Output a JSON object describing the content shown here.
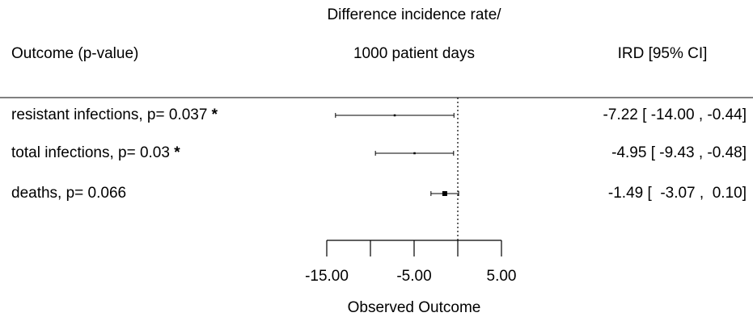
{
  "header": {
    "col_outcome": "Outcome (p-value)",
    "col_measure_line1": "Difference incidence rate/",
    "col_measure_line2": "1000 patient days",
    "col_ci": "IRD [95% CI]"
  },
  "chart_data": {
    "type": "forest",
    "xlabel": "Observed Outcome",
    "xlim": [
      -15,
      5
    ],
    "x_ticks": [
      -15,
      -10,
      -5,
      0,
      5
    ],
    "x_tick_labels": [
      "-15.00",
      "-5.00",
      "5.00"
    ],
    "x_tick_label_values": [
      -15,
      -5,
      5
    ],
    "reference_line": 0,
    "rows": [
      {
        "label": "resistant infections, p= 0.037",
        "flag": "*",
        "estimate": -7.22,
        "ci_low": -14.0,
        "ci_high": -0.44,
        "ci_text": "-7.22 [ -14.00 , -0.44]",
        "marker_size": 1
      },
      {
        "label": "total infections, p= 0.03",
        "flag": "*",
        "estimate": -4.95,
        "ci_low": -9.43,
        "ci_high": -0.48,
        "ci_text": "-4.95 [ -9.43 , -0.48]",
        "marker_size": 1
      },
      {
        "label": "deaths, p= 0.066",
        "flag": "",
        "estimate": -1.49,
        "ci_low": -3.07,
        "ci_high": 0.1,
        "ci_text": "-1.49 [  -3.07 ,  0.10]",
        "marker_size": 3
      }
    ]
  }
}
